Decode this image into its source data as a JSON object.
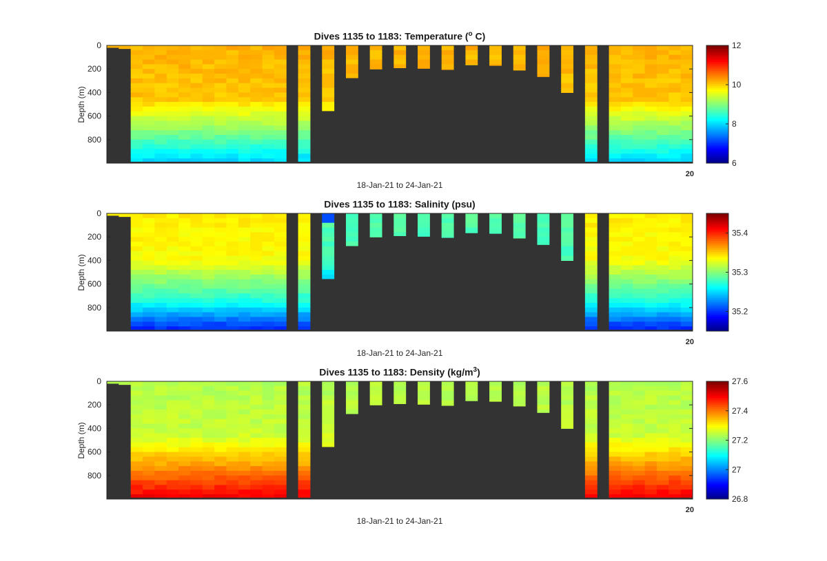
{
  "figure": {
    "x_range_label": "18-Jan-21 to 24-Jan-21",
    "corner_tick_label": "20"
  },
  "panels": [
    {
      "id": "temperature",
      "title_prefix": "Dives 1135 to 1183: Temperature (",
      "title_sup": "o",
      "title_suffix": " C)",
      "ylabel": "Depth (m)",
      "yticks": [
        "0",
        "200",
        "400",
        "600",
        "800"
      ],
      "colorbar_ticks": [
        "12",
        "10",
        "8",
        "6"
      ],
      "colorbar_range": [
        6,
        12
      ]
    },
    {
      "id": "salinity",
      "title_prefix": "Dives 1135 to 1183: Salinity (psu)",
      "title_sup": "",
      "title_suffix": "",
      "ylabel": "Depth (m)",
      "yticks": [
        "0",
        "200",
        "400",
        "600",
        "800"
      ],
      "colorbar_ticks": [
        "35.4",
        "35.3",
        "35.2"
      ],
      "colorbar_range": [
        35.15,
        35.45
      ]
    },
    {
      "id": "density",
      "title_prefix": "Dives 1135 to 1183: Density (kg/m",
      "title_sup": "3",
      "title_suffix": ")",
      "ylabel": "Depth (m)",
      "yticks": [
        "0",
        "200",
        "400",
        "600",
        "800"
      ],
      "colorbar_ticks": [
        "27.6",
        "27.4",
        "27.2",
        "27",
        "26.8"
      ],
      "colorbar_range": [
        26.8,
        27.6
      ]
    }
  ],
  "chart_data": [
    {
      "type": "heatmap",
      "title": "Dives 1135 to 1183: Temperature (o C)",
      "ylabel": "Depth (m)",
      "xlabel": "18-Jan-21 to 24-Jan-21",
      "ylim": [
        0,
        1000
      ],
      "y_reversed": true,
      "colormap": "jet",
      "clim": [
        6,
        12
      ],
      "profile_max_depths_m": [
        20,
        30,
        985,
        985,
        985,
        985,
        985,
        985,
        985,
        985,
        985,
        985,
        985,
        985,
        985,
        0,
        985,
        0,
        555,
        0,
        275,
        0,
        200,
        0,
        190,
        0,
        195,
        0,
        205,
        0,
        165,
        0,
        170,
        0,
        210,
        0,
        265,
        0,
        400,
        0,
        985,
        0,
        985,
        985,
        985,
        985,
        985,
        985,
        985
      ],
      "surface_value_approx": 10.2,
      "deep_value_approx_900m": 8.0
    },
    {
      "type": "heatmap",
      "title": "Dives 1135 to 1183: Salinity (psu)",
      "ylabel": "Depth (m)",
      "xlabel": "18-Jan-21 to 24-Jan-21",
      "ylim": [
        0,
        1000
      ],
      "y_reversed": true,
      "colormap": "jet",
      "clim": [
        35.15,
        35.45
      ],
      "surface_value_approx": 35.34,
      "deep_value_approx_900m": 35.19
    },
    {
      "type": "heatmap",
      "title": "Dives 1135 to 1183: Density (kg/m3)",
      "ylabel": "Depth (m)",
      "xlabel": "18-Jan-21 to 24-Jan-21",
      "ylim": [
        0,
        1000
      ],
      "y_reversed": true,
      "colormap": "jet",
      "clim": [
        26.8,
        27.6
      ],
      "surface_value_approx": 27.25,
      "deep_value_approx_900m": 27.5
    }
  ]
}
